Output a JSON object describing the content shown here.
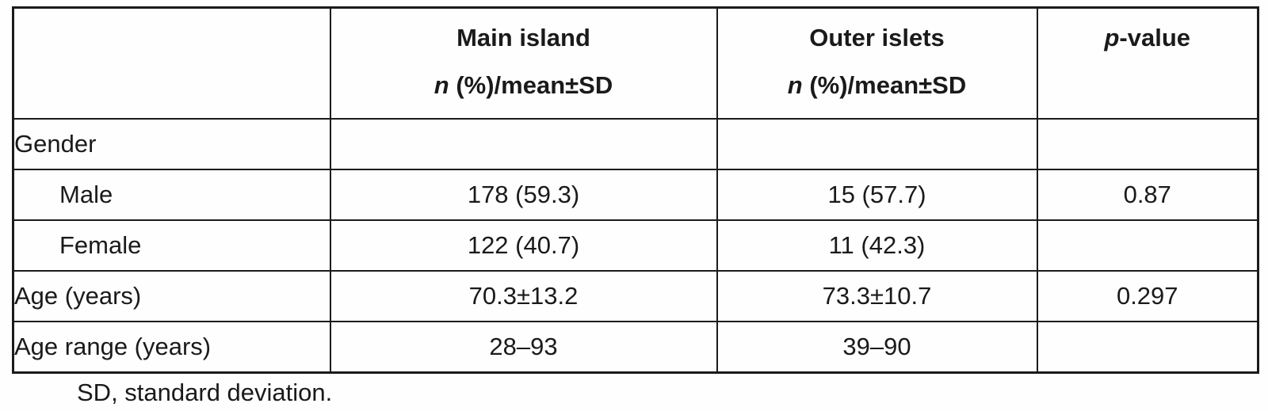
{
  "page": {
    "background": "#fefefe",
    "text_color": "#1a1a1a",
    "border_color": "#1b1b1b"
  },
  "table": {
    "header": {
      "row_label_column": "",
      "main_island": {
        "line1": "Main island",
        "line2_italic": "n",
        "line2_rest": " (%)/mean±SD"
      },
      "outer_islets": {
        "line1": "Outer islets",
        "line2_italic": "n",
        "line2_rest": " (%)/mean±SD"
      },
      "p_value": {
        "italic": "p",
        "rest": "-value"
      }
    },
    "rows": [
      {
        "label": "Gender",
        "main": "",
        "outer": "",
        "p": ""
      },
      {
        "label": "Male",
        "main": "178 (59.3)",
        "outer": "15 (57.7)",
        "p": "0.87"
      },
      {
        "label": "Female",
        "main": "122 (40.7)",
        "outer": "11 (42.3)",
        "p": ""
      },
      {
        "label": "Age (years)",
        "main": "70.3±13.2",
        "outer": "73.3±10.7",
        "p": "0.297"
      },
      {
        "label": "Age range (years)",
        "main": "28–93",
        "outer": "39–90",
        "p": ""
      }
    ],
    "footnote": "SD, standard deviation."
  }
}
